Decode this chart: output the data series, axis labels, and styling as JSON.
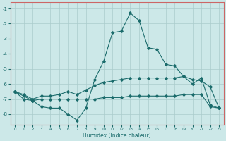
{
  "xlabel": "Humidex (Indice chaleur)",
  "x_values": [
    0,
    1,
    2,
    3,
    4,
    5,
    6,
    7,
    8,
    9,
    10,
    11,
    12,
    13,
    14,
    15,
    16,
    17,
    18,
    19,
    20,
    21,
    22,
    23
  ],
  "line1_y": [
    -6.5,
    -6.8,
    -7.1,
    -7.5,
    -7.6,
    -7.6,
    -8.0,
    -8.4,
    -7.6,
    -5.7,
    -4.5,
    -2.6,
    -2.5,
    -1.3,
    -1.8,
    -3.6,
    -3.7,
    -4.7,
    -4.8,
    -5.5,
    -6.0,
    -5.6,
    -7.4,
    -7.6
  ],
  "line2_y": [
    -6.5,
    -6.7,
    -7.0,
    -6.8,
    -6.8,
    -6.7,
    -6.5,
    -6.7,
    -6.4,
    -6.1,
    -5.9,
    -5.8,
    -5.7,
    -5.6,
    -5.6,
    -5.6,
    -5.6,
    -5.6,
    -5.6,
    -5.5,
    -5.7,
    -5.8,
    -6.2,
    -7.6
  ],
  "line3_y": [
    -6.5,
    -7.0,
    -7.1,
    -7.0,
    -7.0,
    -7.0,
    -7.0,
    -7.0,
    -7.0,
    -7.0,
    -6.9,
    -6.9,
    -6.9,
    -6.8,
    -6.8,
    -6.8,
    -6.8,
    -6.8,
    -6.8,
    -6.7,
    -6.7,
    -6.7,
    -7.5,
    -7.6
  ],
  "line_color": "#1a6b6b",
  "bg_color": "#cce8e8",
  "grid_color": "#aacccc",
  "spine_color": "#cc6666",
  "ylim": [
    -8.7,
    -0.6
  ],
  "xlim": [
    -0.5,
    23.5
  ],
  "yticks": [
    -1,
    -2,
    -3,
    -4,
    -5,
    -6,
    -7,
    -8
  ],
  "xticks": [
    0,
    1,
    2,
    3,
    4,
    5,
    6,
    7,
    8,
    9,
    10,
    11,
    12,
    13,
    14,
    15,
    16,
    17,
    18,
    19,
    20,
    21,
    22,
    23
  ]
}
